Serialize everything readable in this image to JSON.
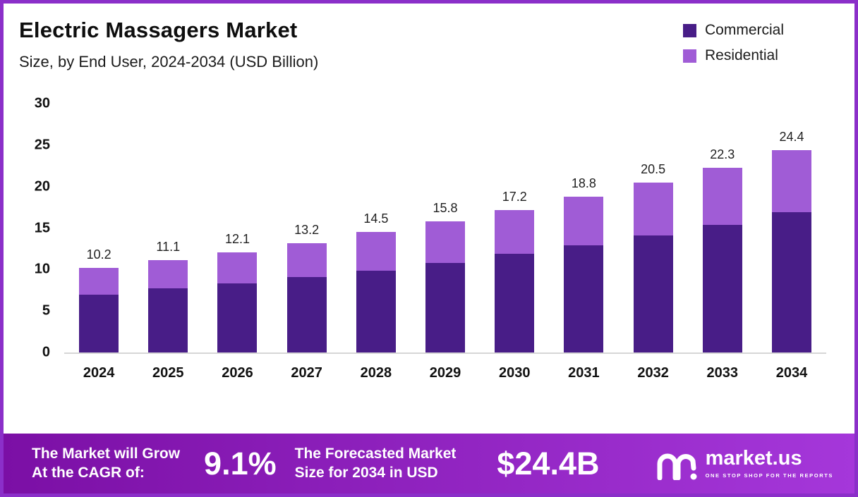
{
  "meta": {
    "border_color": "#8b2fc9"
  },
  "header": {
    "title": "Electric Massagers Market",
    "subtitle": "Size, by End User, 2024-2034 (USD Billion)"
  },
  "legend": [
    {
      "label": "Commercial",
      "color": "#481d87"
    },
    {
      "label": "Residential",
      "color": "#a05cd6"
    }
  ],
  "chart_data": {
    "type": "bar",
    "stacked": true,
    "title": "Electric Massagers Market",
    "subtitle": "Size, by End User, 2024-2034 (USD Billion)",
    "xlabel": "",
    "ylabel": "USD Billion",
    "ylim": [
      0,
      30
    ],
    "y_ticks": [
      0,
      5,
      10,
      15,
      20,
      25,
      30
    ],
    "grid": false,
    "legend_position": "top-right",
    "categories": [
      "2024",
      "2025",
      "2026",
      "2027",
      "2028",
      "2029",
      "2030",
      "2031",
      "2032",
      "2033",
      "2034"
    ],
    "series": [
      {
        "name": "Commercial",
        "color": "#481d87",
        "values": [
          7.0,
          7.7,
          8.3,
          9.1,
          9.9,
          10.8,
          11.9,
          12.9,
          14.1,
          15.4,
          16.9
        ]
      },
      {
        "name": "Residential",
        "color": "#a05cd6",
        "values": [
          3.2,
          3.4,
          3.8,
          4.1,
          4.6,
          5.0,
          5.3,
          5.9,
          6.4,
          6.9,
          7.5
        ]
      }
    ],
    "totals": [
      10.2,
      11.1,
      12.1,
      13.2,
      14.5,
      15.8,
      17.2,
      18.8,
      20.5,
      22.3,
      24.4
    ],
    "total_labels": [
      "10.2",
      "11.1",
      "12.1",
      "13.2",
      "14.5",
      "15.8",
      "17.2",
      "18.8",
      "20.5",
      "22.3",
      "24.4"
    ]
  },
  "footer": {
    "cagr_line1": "The Market will Grow",
    "cagr_line2": "At the CAGR of:",
    "cagr_value": "9.1%",
    "forecast_line1": "The Forecasted Market",
    "forecast_line2": "Size for 2034 in USD",
    "forecast_value": "$24.4B",
    "brand": "market.us",
    "brand_tagline": "ONE STOP SHOP FOR THE REPORTS",
    "gradient": [
      "#7b0fa5",
      "#a537da"
    ]
  }
}
